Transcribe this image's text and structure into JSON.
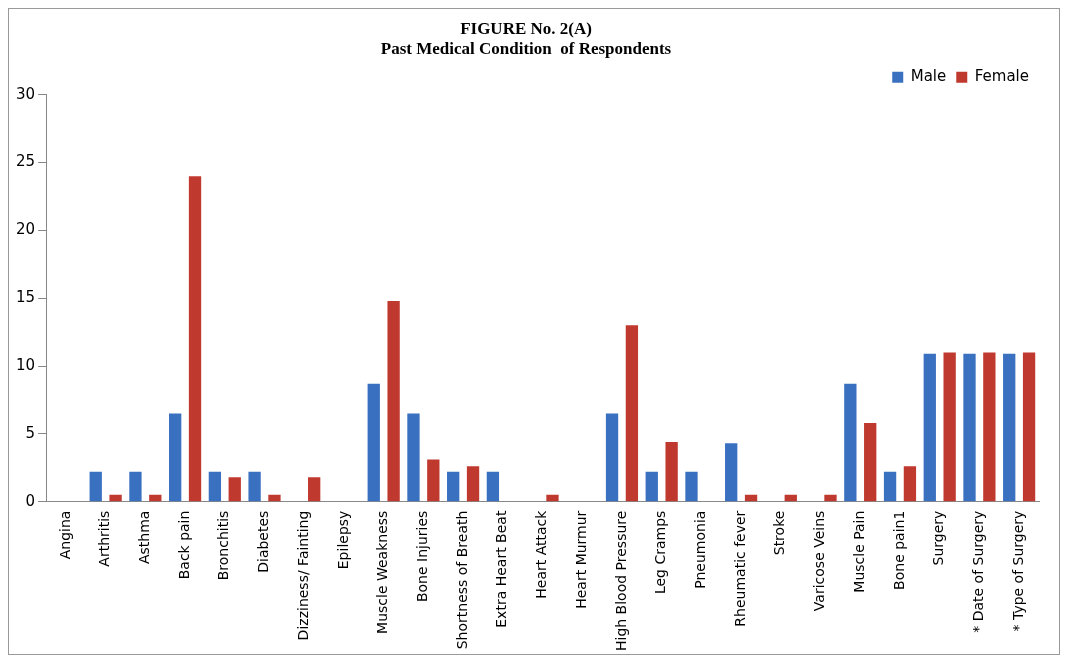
{
  "chart_data": {
    "type": "bar",
    "title": [
      "FIGURE No. 2(A)",
      "Past Medical Condition  of Respondents"
    ],
    "categories": [
      "Angina",
      "Arthritis",
      "Asthma",
      "Back pain",
      "Bronchitis",
      "Diabetes",
      "Dizziness/ Fainting",
      "Epilepsy",
      "Muscle Weakness",
      "Bone Injuries",
      "Shortness of Breath",
      "Extra Heart Beat",
      "Heart Attack",
      "Heart Murmur",
      "High Blood Pressure",
      "Leg Cramps",
      "Pneumonia",
      "Rheumatic fever",
      "Stroke",
      "Varicose Veins",
      "Muscle Pain",
      "Bone pain1",
      "Surgery",
      "* Date of Surgery",
      "* Type of Surgery"
    ],
    "series": [
      {
        "name": "Male",
        "color": "#3a70c0",
        "values": [
          0,
          2.2,
          2.2,
          6.5,
          2.2,
          2.2,
          0,
          0,
          8.7,
          6.5,
          2.2,
          2.2,
          0,
          0,
          6.5,
          2.2,
          2.2,
          4.3,
          0,
          0,
          8.7,
          2.2,
          10.9,
          10.9,
          10.9
        ]
      },
      {
        "name": "Female",
        "color": "#c0392f",
        "values": [
          0,
          0.5,
          0.5,
          24,
          1.8,
          0.5,
          1.8,
          0,
          14.8,
          3.1,
          2.6,
          0,
          0.5,
          0,
          13,
          4.4,
          0,
          0.5,
          0.5,
          0.5,
          5.8,
          2.6,
          11,
          11,
          11
        ]
      }
    ],
    "ylim": [
      0,
      30
    ],
    "yticks": [
      0,
      5,
      10,
      15,
      20,
      25,
      30
    ],
    "grid": false,
    "legend": "top right"
  }
}
